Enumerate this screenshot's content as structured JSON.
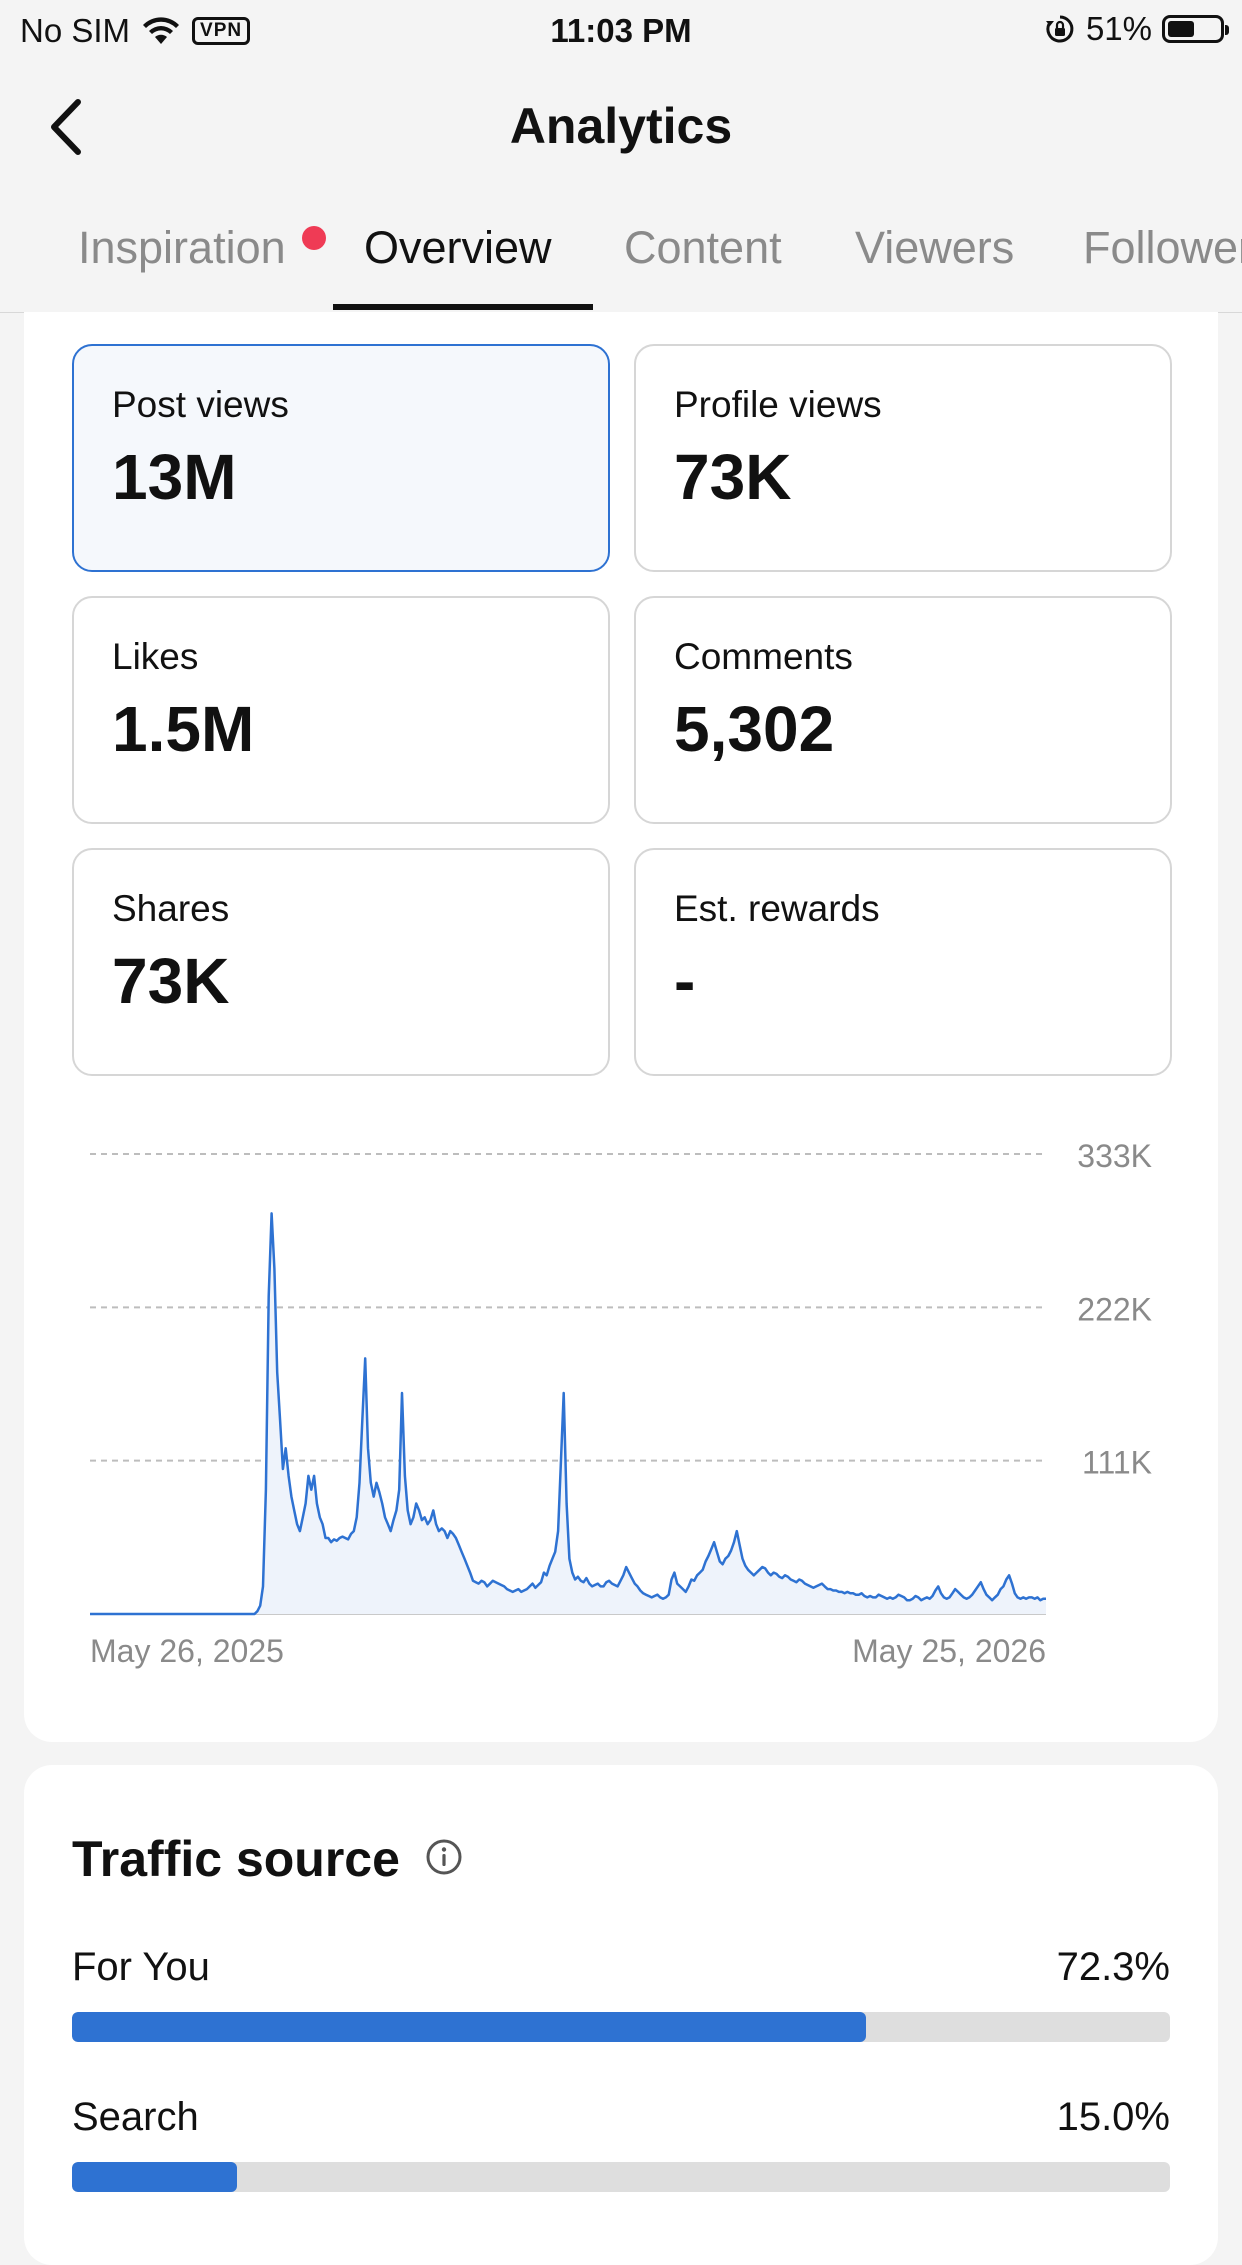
{
  "status_bar": {
    "carrier": "No SIM",
    "vpn": "VPN",
    "time": "11:03 PM",
    "battery": "51%",
    "battery_level": 0.51
  },
  "nav": {
    "title": "Analytics"
  },
  "tabs": [
    {
      "label": "Inspiration",
      "has_dot": true
    },
    {
      "label": "Overview",
      "active": true
    },
    {
      "label": "Content"
    },
    {
      "label": "Viewers"
    },
    {
      "label": "Followers"
    }
  ],
  "metrics": [
    {
      "label": "Post views",
      "value": "13M",
      "selected": true
    },
    {
      "label": "Profile views",
      "value": "73K"
    },
    {
      "label": "Likes",
      "value": "1.5M"
    },
    {
      "label": "Comments",
      "value": "5,302"
    },
    {
      "label": "Shares",
      "value": "73K"
    },
    {
      "label": "Est. rewards",
      "value": "-"
    }
  ],
  "chart_data": {
    "type": "area",
    "y_tick_labels": [
      "333K",
      "222K",
      "111K"
    ],
    "y_ticks": [
      333000,
      222000,
      111000
    ],
    "ylim": [
      0,
      333000
    ],
    "x_start_label": "May 26, 2025",
    "x_end_label": "May 25, 2026",
    "grid": true,
    "color": "#2e72d2",
    "values": [
      0,
      0,
      0,
      0,
      0,
      0,
      0,
      0,
      0,
      0,
      0,
      0,
      0,
      0,
      0,
      0,
      0,
      0,
      0,
      0,
      0,
      0,
      0,
      0,
      0,
      0,
      0,
      0,
      0,
      0,
      0,
      0,
      0,
      0,
      0,
      0,
      0,
      0,
      0,
      0,
      0,
      0,
      0,
      0,
      0,
      0,
      0,
      0,
      0,
      0,
      0,
      0,
      0,
      0,
      0,
      0,
      0,
      0,
      0,
      2000,
      6000,
      20000,
      90000,
      230000,
      290000,
      250000,
      175000,
      140000,
      105000,
      120000,
      100000,
      85000,
      75000,
      65000,
      60000,
      70000,
      80000,
      100000,
      90000,
      100000,
      80000,
      70000,
      65000,
      55000,
      55000,
      52000,
      54000,
      53000,
      55000,
      56000,
      55000,
      54000,
      58000,
      60000,
      70000,
      95000,
      140000,
      185000,
      120000,
      95000,
      85000,
      95000,
      88000,
      80000,
      70000,
      65000,
      60000,
      68000,
      75000,
      90000,
      160000,
      100000,
      75000,
      65000,
      70000,
      80000,
      75000,
      68000,
      70000,
      65000,
      68000,
      75000,
      65000,
      60000,
      62000,
      60000,
      55000,
      60000,
      58000,
      55000,
      50000,
      45000,
      40000,
      35000,
      30000,
      24000,
      23000,
      22000,
      24000,
      23000,
      20000,
      22000,
      24000,
      23000,
      22000,
      21000,
      20000,
      18000,
      17000,
      16000,
      17000,
      18000,
      16000,
      17000,
      18000,
      20000,
      22000,
      19000,
      21000,
      23000,
      30000,
      28000,
      35000,
      40000,
      45000,
      60000,
      110000,
      160000,
      80000,
      40000,
      30000,
      25000,
      27000,
      24000,
      23000,
      26000,
      22000,
      20000,
      21000,
      22000,
      20000,
      20000,
      23000,
      24000,
      22000,
      21000,
      20000,
      24000,
      28000,
      34000,
      30000,
      26000,
      22000,
      20000,
      17000,
      15000,
      14000,
      13000,
      12000,
      13000,
      14000,
      12000,
      11000,
      12000,
      14000,
      25000,
      30000,
      22000,
      20000,
      18000,
      16000,
      20000,
      25000,
      24000,
      28000,
      30000,
      32000,
      38000,
      42000,
      47000,
      52000,
      45000,
      38000,
      36000,
      40000,
      42000,
      46000,
      52000,
      60000,
      50000,
      40000,
      35000,
      32000,
      30000,
      28000,
      30000,
      32000,
      34000,
      33000,
      30000,
      28000,
      30000,
      29000,
      27000,
      26000,
      28000,
      27000,
      25000,
      24000,
      23000,
      25000,
      24000,
      22000,
      21000,
      20000,
      19000,
      20000,
      21000,
      22000,
      20000,
      18000,
      18000,
      17000,
      17000,
      16000,
      16000,
      15000,
      16000,
      15000,
      15000,
      14000,
      14000,
      15000,
      13000,
      12000,
      13000,
      12000,
      12000,
      14000,
      13000,
      12000,
      11000,
      12000,
      11000,
      12000,
      14000,
      13000,
      12000,
      10000,
      10000,
      11000,
      13000,
      12000,
      10000,
      11000,
      12000,
      11000,
      13000,
      17000,
      20000,
      15000,
      12000,
      11000,
      12000,
      15000,
      18000,
      16000,
      14000,
      12000,
      11000,
      12000,
      14000,
      17000,
      20000,
      23000,
      18000,
      14000,
      12000,
      10000,
      12000,
      14000,
      18000,
      20000,
      25000,
      28000,
      22000,
      15000,
      12000,
      11000,
      12000,
      11000,
      12000,
      12000,
      11000,
      12000,
      10000,
      11000,
      11000
    ]
  },
  "traffic_source": {
    "title": "Traffic source",
    "items": [
      {
        "label": "For You",
        "pct": "72.3%",
        "value": 72.3
      },
      {
        "label": "Search",
        "pct": "15.0%",
        "value": 15.0
      }
    ]
  }
}
